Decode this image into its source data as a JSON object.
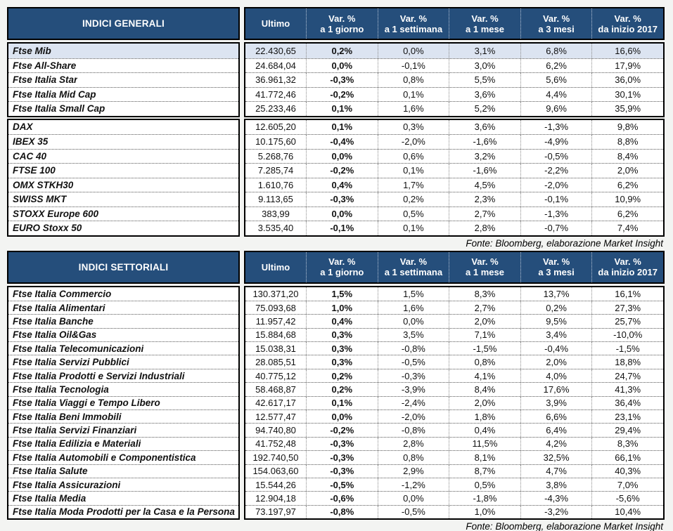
{
  "colors": {
    "header_bg": "#254E7B",
    "header_text": "#FFFFFF",
    "highlight_row_bg": "#DCE4F1",
    "border": "#000000"
  },
  "source_note": "Fonte: Bloomberg, elaborazione Market Insight",
  "columns": [
    {
      "top": "Ultimo",
      "bottom": ""
    },
    {
      "top": "Var. %",
      "bottom": "a 1 giorno"
    },
    {
      "top": "Var. %",
      "bottom": "a 1 settimana"
    },
    {
      "top": "Var. %",
      "bottom": "a 1 mese"
    },
    {
      "top": "Var. %",
      "bottom": "a 3 mesi"
    },
    {
      "top": "Var. %",
      "bottom": "da inizio 2017"
    }
  ],
  "tables": [
    {
      "title": "INDICI GENERALI",
      "blocks": [
        {
          "highlight_row": 0,
          "rows": [
            [
              "Ftse Mib",
              "22.430,65",
              "0,2%",
              "0,0%",
              "3,1%",
              "6,8%",
              "16,6%"
            ],
            [
              "Ftse All-Share",
              "24.684,04",
              "0,0%",
              "-0,1%",
              "3,0%",
              "6,2%",
              "17,9%"
            ],
            [
              "Ftse Italia Star",
              "36.961,32",
              "-0,3%",
              "0,8%",
              "5,5%",
              "5,6%",
              "36,0%"
            ],
            [
              "Ftse Italia Mid Cap",
              "41.772,46",
              "-0,2%",
              "0,1%",
              "3,6%",
              "4,4%",
              "30,1%"
            ],
            [
              "Ftse Italia Small Cap",
              "25.233,46",
              "0,1%",
              "1,6%",
              "5,2%",
              "9,6%",
              "35,9%"
            ]
          ]
        },
        {
          "highlight_row": -1,
          "rows": [
            [
              "DAX",
              "12.605,20",
              "0,1%",
              "0,3%",
              "3,6%",
              "-1,3%",
              "9,8%"
            ],
            [
              "IBEX 35",
              "10.175,60",
              "-0,4%",
              "-2,0%",
              "-1,6%",
              "-4,9%",
              "8,8%"
            ],
            [
              "CAC 40",
              "5.268,76",
              "0,0%",
              "0,6%",
              "3,2%",
              "-0,5%",
              "8,4%"
            ],
            [
              "FTSE 100",
              "7.285,74",
              "-0,2%",
              "0,1%",
              "-1,6%",
              "-2,2%",
              "2,0%"
            ],
            [
              "OMX STKH30",
              "1.610,76",
              "0,4%",
              "1,7%",
              "4,5%",
              "-2,0%",
              "6,2%"
            ],
            [
              "SWISS MKT",
              "9.113,65",
              "-0,3%",
              "0,2%",
              "2,3%",
              "-0,1%",
              "10,9%"
            ],
            [
              "STOXX Europe 600",
              "383,99",
              "0,0%",
              "0,5%",
              "2,7%",
              "-1,3%",
              "6,2%"
            ],
            [
              "EURO Stoxx 50",
              "3.535,40",
              "-0,1%",
              "0,1%",
              "2,8%",
              "-0,7%",
              "7,4%"
            ]
          ]
        }
      ]
    },
    {
      "title": "INDICI SETTORIALI",
      "blocks": [
        {
          "highlight_row": -1,
          "rows": [
            [
              "Ftse Italia Commercio",
              "130.371,20",
              "1,5%",
              "1,5%",
              "8,3%",
              "13,7%",
              "16,1%"
            ],
            [
              "Ftse Italia Alimentari",
              "75.093,68",
              "1,0%",
              "1,6%",
              "2,7%",
              "0,2%",
              "27,3%"
            ],
            [
              "Ftse Italia Banche",
              "11.957,42",
              "0,4%",
              "0,0%",
              "2,0%",
              "9,5%",
              "25,7%"
            ],
            [
              "Ftse Italia Oil&Gas",
              "15.884,68",
              "0,3%",
              "3,5%",
              "7,1%",
              "3,4%",
              "-10,0%"
            ],
            [
              "Ftse Italia Telecomunicazioni",
              "15.038,31",
              "0,3%",
              "-0,8%",
              "-1,5%",
              "-0,4%",
              "-1,5%"
            ],
            [
              "Ftse Italia Servizi Pubblici",
              "28.085,51",
              "0,3%",
              "-0,5%",
              "0,8%",
              "2,0%",
              "18,8%"
            ],
            [
              "Ftse Italia Prodotti e Servizi Industriali",
              "40.775,12",
              "0,2%",
              "-0,3%",
              "4,1%",
              "4,0%",
              "24,7%"
            ],
            [
              "Ftse Italia Tecnologia",
              "58.468,87",
              "0,2%",
              "-3,9%",
              "8,4%",
              "17,6%",
              "41,3%"
            ],
            [
              "Ftse Italia Viaggi e Tempo Libero",
              "42.617,17",
              "0,1%",
              "-2,4%",
              "2,0%",
              "3,9%",
              "36,4%"
            ],
            [
              "Ftse Italia Beni Immobili",
              "12.577,47",
              "0,0%",
              "-2,0%",
              "1,8%",
              "6,6%",
              "23,1%"
            ],
            [
              "Ftse Italia Servizi Finanziari",
              "94.740,80",
              "-0,2%",
              "-0,8%",
              "0,4%",
              "6,4%",
              "29,4%"
            ],
            [
              "Ftse Italia Edilizia e Materiali",
              "41.752,48",
              "-0,3%",
              "2,8%",
              "11,5%",
              "4,2%",
              "8,3%"
            ],
            [
              "Ftse Italia Automobili e Componentistica",
              "192.740,50",
              "-0,3%",
              "0,8%",
              "8,1%",
              "32,5%",
              "66,1%"
            ],
            [
              "Ftse Italia Salute",
              "154.063,60",
              "-0,3%",
              "2,9%",
              "8,7%",
              "4,7%",
              "40,3%"
            ],
            [
              "Ftse Italia Assicurazioni",
              "15.544,26",
              "-0,5%",
              "-1,2%",
              "0,5%",
              "3,8%",
              "7,0%"
            ],
            [
              "Ftse Italia Media",
              "12.904,18",
              "-0,6%",
              "0,0%",
              "-1,8%",
              "-4,3%",
              "-5,6%"
            ],
            [
              "Ftse Italia Moda Prodotti per la Casa e la Persona",
              "73.197,97",
              "-0,8%",
              "-0,5%",
              "1,0%",
              "-3,2%",
              "10,4%"
            ]
          ]
        }
      ]
    }
  ]
}
